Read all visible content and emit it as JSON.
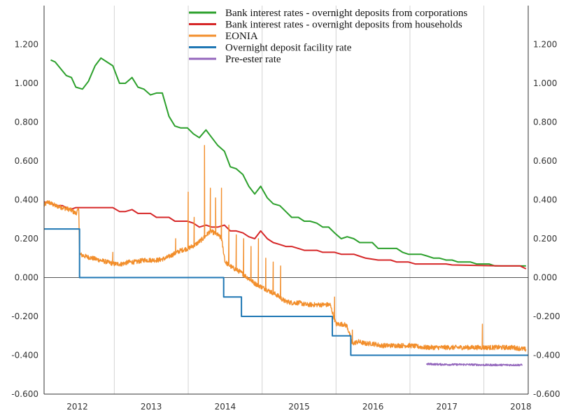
{
  "chart_data": {
    "type": "line",
    "xlim": [
      2011.55,
      2018.1
    ],
    "ylim": [
      -0.6,
      1.4
    ],
    "grid": "vertical",
    "legend_position": "top-right",
    "x_ticks": [
      {
        "value": 2012,
        "label": "2012"
      },
      {
        "value": 2013,
        "label": "2013"
      },
      {
        "value": 2014,
        "label": "2014"
      },
      {
        "value": 2015,
        "label": "2015"
      },
      {
        "value": 2016,
        "label": "2016"
      },
      {
        "value": 2017,
        "label": "2017"
      },
      {
        "value": 2018,
        "label": "2018"
      }
    ],
    "y_ticks": [
      {
        "value": 1.2,
        "label": "1.200"
      },
      {
        "value": 1.0,
        "label": "1.000"
      },
      {
        "value": 0.8,
        "label": "0.800"
      },
      {
        "value": 0.6,
        "label": "0.600"
      },
      {
        "value": 0.4,
        "label": "0.400"
      },
      {
        "value": 0.2,
        "label": "0.200"
      },
      {
        "value": 0.0,
        "label": "0.000"
      },
      {
        "value": -0.2,
        "label": "-0.200"
      },
      {
        "value": -0.4,
        "label": "-0.400"
      },
      {
        "value": -0.6,
        "label": "-0.600"
      }
    ],
    "series": [
      {
        "name": "Bank interest rates - overnight deposits from corporations",
        "color": "#2ca02c",
        "style": "line",
        "points": [
          [
            2011.64,
            1.12
          ],
          [
            2011.7,
            1.11
          ],
          [
            2011.85,
            1.04
          ],
          [
            2011.92,
            1.03
          ],
          [
            2011.98,
            0.98
          ],
          [
            2012.07,
            0.97
          ],
          [
            2012.15,
            1.01
          ],
          [
            2012.24,
            1.09
          ],
          [
            2012.32,
            1.13
          ],
          [
            2012.4,
            1.11
          ],
          [
            2012.48,
            1.09
          ],
          [
            2012.57,
            1.0
          ],
          [
            2012.65,
            1.0
          ],
          [
            2012.74,
            1.03
          ],
          [
            2012.82,
            0.98
          ],
          [
            2012.9,
            0.97
          ],
          [
            2012.99,
            0.94
          ],
          [
            2013.07,
            0.95
          ],
          [
            2013.15,
            0.95
          ],
          [
            2013.24,
            0.83
          ],
          [
            2013.32,
            0.78
          ],
          [
            2013.4,
            0.77
          ],
          [
            2013.49,
            0.77
          ],
          [
            2013.57,
            0.74
          ],
          [
            2013.65,
            0.72
          ],
          [
            2013.74,
            0.76
          ],
          [
            2013.82,
            0.72
          ],
          [
            2013.9,
            0.68
          ],
          [
            2013.99,
            0.65
          ],
          [
            2014.07,
            0.57
          ],
          [
            2014.15,
            0.56
          ],
          [
            2014.24,
            0.53
          ],
          [
            2014.32,
            0.47
          ],
          [
            2014.4,
            0.43
          ],
          [
            2014.48,
            0.47
          ],
          [
            2014.57,
            0.41
          ],
          [
            2014.65,
            0.38
          ],
          [
            2014.74,
            0.37
          ],
          [
            2014.82,
            0.34
          ],
          [
            2014.9,
            0.31
          ],
          [
            2014.99,
            0.31
          ],
          [
            2015.07,
            0.29
          ],
          [
            2015.15,
            0.29
          ],
          [
            2015.24,
            0.28
          ],
          [
            2015.32,
            0.26
          ],
          [
            2015.4,
            0.26
          ],
          [
            2015.48,
            0.23
          ],
          [
            2015.57,
            0.2
          ],
          [
            2015.65,
            0.21
          ],
          [
            2015.74,
            0.2
          ],
          [
            2015.82,
            0.18
          ],
          [
            2015.9,
            0.18
          ],
          [
            2015.99,
            0.18
          ],
          [
            2016.07,
            0.15
          ],
          [
            2016.15,
            0.15
          ],
          [
            2016.24,
            0.15
          ],
          [
            2016.32,
            0.15
          ],
          [
            2016.4,
            0.13
          ],
          [
            2016.48,
            0.12
          ],
          [
            2016.57,
            0.12
          ],
          [
            2016.65,
            0.12
          ],
          [
            2016.74,
            0.11
          ],
          [
            2016.82,
            0.1
          ],
          [
            2016.9,
            0.1
          ],
          [
            2016.99,
            0.09
          ],
          [
            2017.07,
            0.09
          ],
          [
            2017.15,
            0.08
          ],
          [
            2017.24,
            0.08
          ],
          [
            2017.32,
            0.08
          ],
          [
            2017.4,
            0.07
          ],
          [
            2017.48,
            0.07
          ],
          [
            2017.57,
            0.07
          ],
          [
            2017.65,
            0.06
          ],
          [
            2017.74,
            0.06
          ],
          [
            2017.82,
            0.06
          ],
          [
            2017.9,
            0.06
          ],
          [
            2017.99,
            0.06
          ],
          [
            2018.07,
            0.06
          ]
        ]
      },
      {
        "name": "Bank interest rates - overnight deposits from households",
        "color": "#d62728",
        "style": "line",
        "points": [
          [
            2011.55,
            0.39
          ],
          [
            2011.64,
            0.38
          ],
          [
            2011.72,
            0.37
          ],
          [
            2011.8,
            0.37
          ],
          [
            2011.9,
            0.35
          ],
          [
            2011.98,
            0.36
          ],
          [
            2012.05,
            0.36
          ],
          [
            2012.15,
            0.36
          ],
          [
            2012.3,
            0.36
          ],
          [
            2012.48,
            0.36
          ],
          [
            2012.57,
            0.34
          ],
          [
            2012.65,
            0.34
          ],
          [
            2012.74,
            0.35
          ],
          [
            2012.82,
            0.33
          ],
          [
            2012.99,
            0.33
          ],
          [
            2013.07,
            0.31
          ],
          [
            2013.15,
            0.31
          ],
          [
            2013.24,
            0.31
          ],
          [
            2013.32,
            0.29
          ],
          [
            2013.49,
            0.29
          ],
          [
            2013.57,
            0.28
          ],
          [
            2013.65,
            0.26
          ],
          [
            2013.74,
            0.27
          ],
          [
            2013.82,
            0.26
          ],
          [
            2013.9,
            0.26
          ],
          [
            2013.99,
            0.27
          ],
          [
            2014.07,
            0.24
          ],
          [
            2014.15,
            0.24
          ],
          [
            2014.24,
            0.23
          ],
          [
            2014.32,
            0.21
          ],
          [
            2014.4,
            0.2
          ],
          [
            2014.48,
            0.24
          ],
          [
            2014.57,
            0.2
          ],
          [
            2014.65,
            0.18
          ],
          [
            2014.74,
            0.17
          ],
          [
            2014.82,
            0.16
          ],
          [
            2014.9,
            0.16
          ],
          [
            2014.99,
            0.15
          ],
          [
            2015.07,
            0.14
          ],
          [
            2015.24,
            0.14
          ],
          [
            2015.32,
            0.13
          ],
          [
            2015.48,
            0.13
          ],
          [
            2015.57,
            0.12
          ],
          [
            2015.74,
            0.12
          ],
          [
            2015.82,
            0.11
          ],
          [
            2015.9,
            0.1
          ],
          [
            2016.07,
            0.09
          ],
          [
            2016.24,
            0.09
          ],
          [
            2016.32,
            0.08
          ],
          [
            2016.48,
            0.08
          ],
          [
            2016.57,
            0.07
          ],
          [
            2016.99,
            0.07
          ],
          [
            2017.07,
            0.065
          ],
          [
            2017.74,
            0.06
          ],
          [
            2017.99,
            0.06
          ],
          [
            2018.07,
            0.045
          ]
        ]
      },
      {
        "name": "EONIA",
        "color": "#f28e2b",
        "style": "noisy-line",
        "points": [
          [
            2011.55,
            0.37
          ],
          [
            2011.6,
            0.39
          ],
          [
            2011.7,
            0.37
          ],
          [
            2011.8,
            0.36
          ],
          [
            2011.9,
            0.35
          ],
          [
            2011.98,
            0.33
          ],
          [
            2012.02,
            0.35
          ],
          [
            2012.03,
            0.12
          ],
          [
            2012.1,
            0.11
          ],
          [
            2012.2,
            0.1
          ],
          [
            2012.3,
            0.09
          ],
          [
            2012.4,
            0.08
          ],
          [
            2012.5,
            0.07
          ],
          [
            2012.6,
            0.07
          ],
          [
            2012.7,
            0.08
          ],
          [
            2012.8,
            0.08
          ],
          [
            2012.9,
            0.09
          ],
          [
            2013.0,
            0.09
          ],
          [
            2013.1,
            0.09
          ],
          [
            2013.2,
            0.1
          ],
          [
            2013.3,
            0.12
          ],
          [
            2013.4,
            0.14
          ],
          [
            2013.5,
            0.15
          ],
          [
            2013.6,
            0.17
          ],
          [
            2013.7,
            0.2
          ],
          [
            2013.75,
            0.22
          ],
          [
            2013.8,
            0.24
          ],
          [
            2013.9,
            0.22
          ],
          [
            2013.95,
            0.2
          ],
          [
            2014.0,
            0.08
          ],
          [
            2014.1,
            0.05
          ],
          [
            2014.2,
            0.03
          ],
          [
            2014.3,
            0.0
          ],
          [
            2014.4,
            -0.03
          ],
          [
            2014.5,
            -0.05
          ],
          [
            2014.6,
            -0.07
          ],
          [
            2014.7,
            -0.09
          ],
          [
            2014.8,
            -0.12
          ],
          [
            2014.9,
            -0.13
          ],
          [
            2015.0,
            -0.13
          ],
          [
            2015.1,
            -0.14
          ],
          [
            2015.2,
            -0.14
          ],
          [
            2015.3,
            -0.14
          ],
          [
            2015.42,
            -0.14
          ],
          [
            2015.5,
            -0.24
          ],
          [
            2015.6,
            -0.24
          ],
          [
            2015.65,
            -0.25
          ],
          [
            2015.72,
            -0.34
          ],
          [
            2015.8,
            -0.33
          ],
          [
            2015.9,
            -0.34
          ],
          [
            2016.0,
            -0.34
          ],
          [
            2016.1,
            -0.35
          ],
          [
            2016.3,
            -0.35
          ],
          [
            2016.5,
            -0.35
          ],
          [
            2016.7,
            -0.36
          ],
          [
            2016.9,
            -0.36
          ],
          [
            2017.1,
            -0.36
          ],
          [
            2017.3,
            -0.36
          ],
          [
            2017.5,
            -0.36
          ],
          [
            2017.7,
            -0.36
          ],
          [
            2017.9,
            -0.36
          ],
          [
            2018.07,
            -0.37
          ]
        ],
        "spikes": [
          [
            2012.48,
            0.13
          ],
          [
            2013.33,
            0.2
          ],
          [
            2013.5,
            0.44
          ],
          [
            2013.58,
            0.31
          ],
          [
            2013.72,
            0.68
          ],
          [
            2013.8,
            0.46
          ],
          [
            2013.87,
            0.41
          ],
          [
            2013.95,
            0.46
          ],
          [
            2014.05,
            0.27
          ],
          [
            2014.15,
            0.22
          ],
          [
            2014.25,
            0.2
          ],
          [
            2014.35,
            0.16
          ],
          [
            2014.45,
            0.2
          ],
          [
            2014.55,
            0.1
          ],
          [
            2014.65,
            0.08
          ],
          [
            2014.75,
            0.06
          ],
          [
            2015.48,
            -0.1
          ],
          [
            2015.72,
            -0.27
          ],
          [
            2017.48,
            -0.24
          ]
        ],
        "noise": 0.012
      },
      {
        "name": "Overnight deposit facility rate",
        "color": "#1f77b4",
        "style": "step",
        "points": [
          [
            2011.55,
            0.25
          ],
          [
            2012.03,
            0.25
          ],
          [
            2012.03,
            0.0
          ],
          [
            2013.98,
            0.0
          ],
          [
            2013.98,
            -0.1
          ],
          [
            2014.22,
            -0.1
          ],
          [
            2014.22,
            -0.2
          ],
          [
            2015.45,
            -0.2
          ],
          [
            2015.45,
            -0.3
          ],
          [
            2015.7,
            -0.3
          ],
          [
            2015.7,
            -0.4
          ],
          [
            2018.1,
            -0.4
          ]
        ]
      },
      {
        "name": "Pre-ester rate",
        "color": "#9467bd",
        "style": "noisy-line",
        "points": [
          [
            2016.72,
            -0.445
          ],
          [
            2016.9,
            -0.447
          ],
          [
            2017.1,
            -0.448
          ],
          [
            2017.3,
            -0.448
          ],
          [
            2017.5,
            -0.45
          ],
          [
            2017.7,
            -0.45
          ],
          [
            2017.9,
            -0.45
          ],
          [
            2018.02,
            -0.45
          ]
        ],
        "spikes": [],
        "noise": 0.005
      }
    ]
  }
}
